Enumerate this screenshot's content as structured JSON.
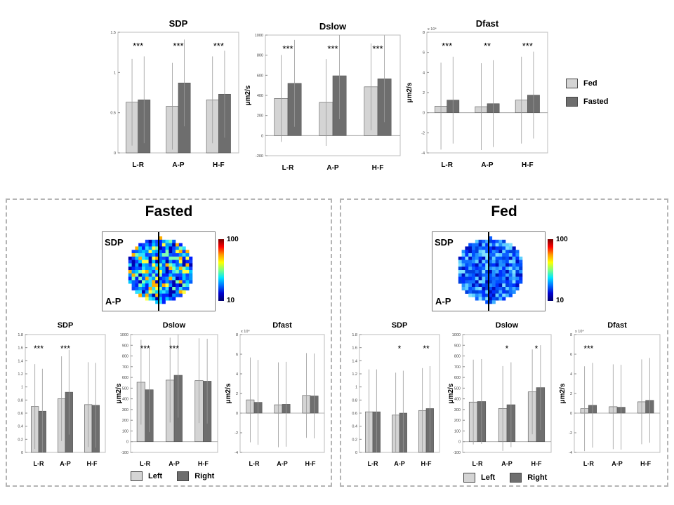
{
  "chart_data": [
    {
      "id": "top-sdp",
      "type": "bar",
      "title": "SDP",
      "ylabel": "",
      "categories": [
        "L-R",
        "A-P",
        "H-F"
      ],
      "series": [
        {
          "name": "Fed",
          "values": [
            0.63,
            0.58,
            0.66
          ]
        },
        {
          "name": "Fasted",
          "values": [
            0.66,
            0.87,
            0.73
          ]
        }
      ],
      "ylim": [
        0,
        1.5
      ],
      "yticks": [
        "0",
        "0.5",
        "1",
        "1.5"
      ],
      "sig": [
        "***",
        "***",
        "***"
      ]
    },
    {
      "id": "top-dslow",
      "type": "bar",
      "title": "Dslow",
      "ylabel": "μm2/s",
      "categories": [
        "L-R",
        "A-P",
        "H-F"
      ],
      "series": [
        {
          "name": "Fed",
          "values": [
            370,
            330,
            485
          ]
        },
        {
          "name": "Fasted",
          "values": [
            520,
            595,
            565
          ]
        }
      ],
      "ylim": [
        -200,
        1000
      ],
      "yticks": [
        "-200",
        "0",
        "200",
        "400",
        "600",
        "800",
        "1000"
      ],
      "sig": [
        "***",
        "***",
        "***"
      ]
    },
    {
      "id": "top-dfast",
      "type": "bar",
      "title": "Dfast",
      "ylabel": "μm2/s",
      "exp": "x 10⁴",
      "categories": [
        "L-R",
        "A-P",
        "H-F"
      ],
      "series": [
        {
          "name": "Fed",
          "values": [
            0.65,
            0.6,
            1.25
          ]
        },
        {
          "name": "Fasted",
          "values": [
            1.25,
            0.9,
            1.75
          ]
        }
      ],
      "ylim": [
        -4,
        8
      ],
      "yticks": [
        "-4",
        "-2",
        "0",
        "2",
        "4",
        "6",
        "8"
      ],
      "sig": [
        "***",
        "**",
        "***"
      ]
    },
    {
      "id": "fasted-sdp",
      "type": "bar",
      "title": "SDP",
      "ylabel": "",
      "categories": [
        "L-R",
        "A-P",
        "H-F"
      ],
      "series": [
        {
          "name": "Left",
          "values": [
            0.7,
            0.82,
            0.73
          ]
        },
        {
          "name": "Right",
          "values": [
            0.63,
            0.92,
            0.72
          ]
        }
      ],
      "ylim": [
        0,
        1.8
      ],
      "yticks": [
        "0",
        "0.2",
        "0.4",
        "0.6",
        "0.8",
        "1",
        "1.2",
        "1.4",
        "1.6",
        "1.8"
      ],
      "sig": [
        "***",
        "***",
        ""
      ]
    },
    {
      "id": "fasted-dslow",
      "type": "bar",
      "title": "Dslow",
      "ylabel": "μm2/s",
      "categories": [
        "L-R",
        "A-P",
        "H-F"
      ],
      "series": [
        {
          "name": "Left",
          "values": [
            555,
            575,
            570
          ]
        },
        {
          "name": "Right",
          "values": [
            485,
            620,
            565
          ]
        }
      ],
      "ylim": [
        -100,
        1000
      ],
      "yticks": [
        "-100",
        "0",
        "100",
        "200",
        "300",
        "400",
        "500",
        "600",
        "700",
        "800",
        "900",
        "1000"
      ],
      "sig": [
        "***",
        "***",
        ""
      ]
    },
    {
      "id": "fasted-dfast",
      "type": "bar",
      "title": "Dfast",
      "ylabel": "μm2/s",
      "exp": "x 10⁴",
      "categories": [
        "L-R",
        "A-P",
        "H-F"
      ],
      "series": [
        {
          "name": "Left",
          "values": [
            1.35,
            0.85,
            1.8
          ]
        },
        {
          "name": "Right",
          "values": [
            1.1,
            0.9,
            1.75
          ]
        }
      ],
      "ylim": [
        -4,
        8
      ],
      "yticks": [
        "-4",
        "-2",
        "0",
        "2",
        "4",
        "6",
        "8"
      ],
      "sig": [
        "",
        "",
        ""
      ]
    },
    {
      "id": "fed-sdp",
      "type": "bar",
      "title": "SDP",
      "ylabel": "",
      "categories": [
        "L-R",
        "A-P",
        "H-F"
      ],
      "series": [
        {
          "name": "Left",
          "values": [
            0.62,
            0.57,
            0.64
          ]
        },
        {
          "name": "Right",
          "values": [
            0.62,
            0.6,
            0.67
          ]
        }
      ],
      "ylim": [
        0,
        1.8
      ],
      "yticks": [
        "0",
        "0.2",
        "0.4",
        "0.6",
        "0.8",
        "1",
        "1.2",
        "1.4",
        "1.6",
        "1.8"
      ],
      "sig": [
        "",
        "*",
        "**"
      ]
    },
    {
      "id": "fed-dslow",
      "type": "bar",
      "title": "Dslow",
      "ylabel": "μm2/s",
      "categories": [
        "L-R",
        "A-P",
        "H-F"
      ],
      "series": [
        {
          "name": "Left",
          "values": [
            370,
            310,
            465
          ]
        },
        {
          "name": "Right",
          "values": [
            375,
            345,
            505
          ]
        }
      ],
      "ylim": [
        -100,
        1000
      ],
      "yticks": [
        "-100",
        "0",
        "100",
        "200",
        "300",
        "400",
        "500",
        "600",
        "700",
        "800",
        "900",
        "1000"
      ],
      "sig": [
        "",
        "*",
        "*"
      ]
    },
    {
      "id": "fed-dfast",
      "type": "bar",
      "title": "Dfast",
      "ylabel": "μm2/s",
      "exp": "x 10⁴",
      "categories": [
        "L-R",
        "A-P",
        "H-F"
      ],
      "series": [
        {
          "name": "Left",
          "values": [
            0.45,
            0.65,
            1.15
          ]
        },
        {
          "name": "Right",
          "values": [
            0.8,
            0.6,
            1.3
          ]
        }
      ],
      "ylim": [
        -4,
        8
      ],
      "yticks": [
        "-4",
        "-2",
        "0",
        "2",
        "4",
        "6",
        "8"
      ],
      "sig": [
        "***",
        "",
        ""
      ]
    }
  ],
  "top_legend": {
    "fed": "Fed",
    "fasted": "Fasted"
  },
  "panels": {
    "fasted": {
      "title": "Fasted",
      "legend_left": "Left",
      "legend_right": "Right",
      "map_label_top": "SDP",
      "map_label_bottom": "A-P",
      "cbar_max": "100",
      "cbar_min": "10"
    },
    "fed": {
      "title": "Fed",
      "legend_left": "Left",
      "legend_right": "Right",
      "map_label_top": "SDP",
      "map_label_bottom": "A-P",
      "cbar_max": "100",
      "cbar_min": "10"
    }
  },
  "colors": {
    "light": "#d4d4d4",
    "dark": "#6e6e6e",
    "err": "#9a9a9a"
  }
}
